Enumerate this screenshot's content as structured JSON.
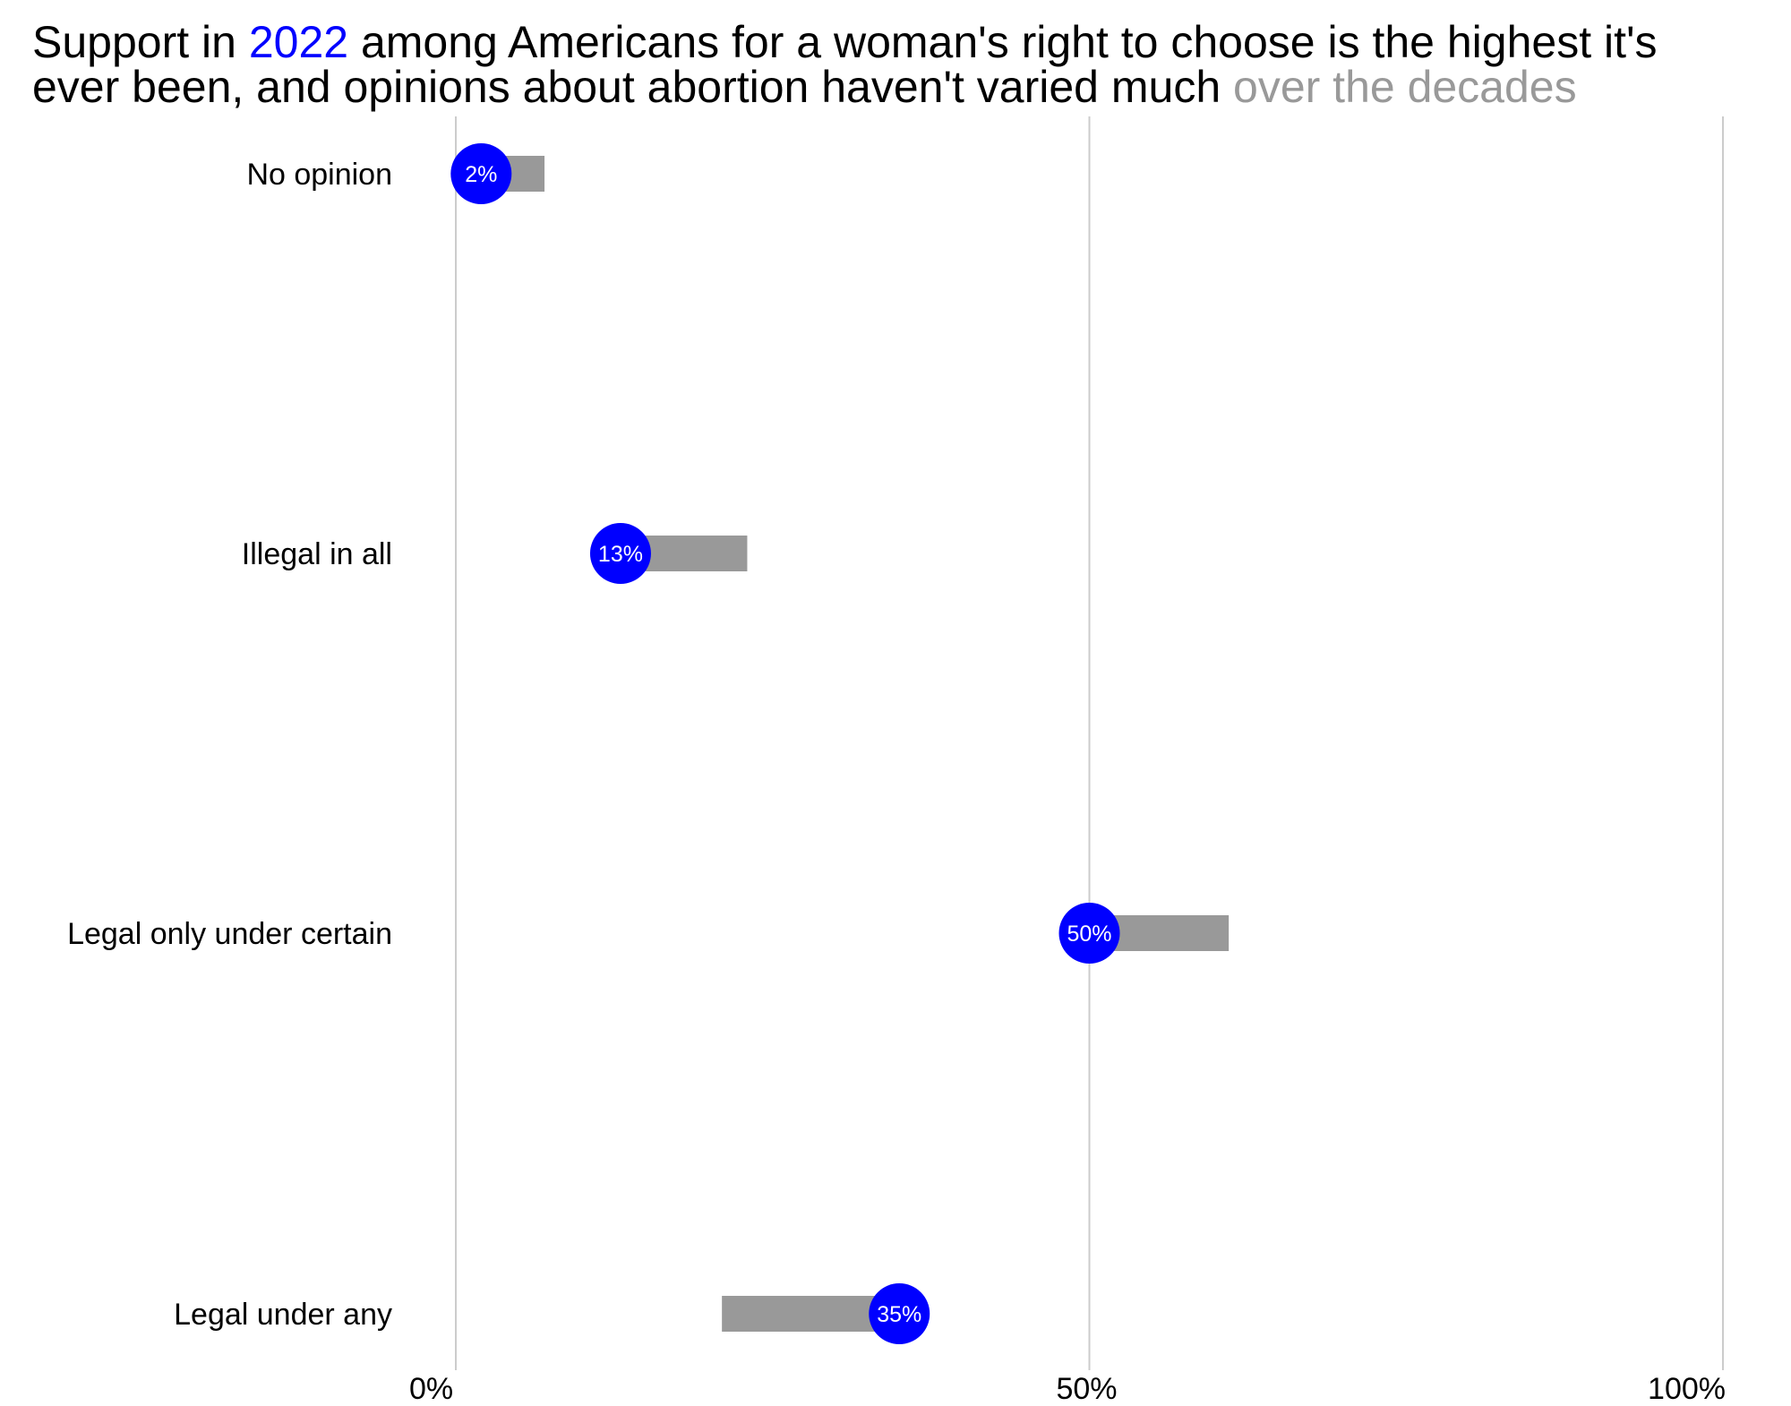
{
  "title": {
    "line1_pre": "Support in ",
    "line1_year": "2022",
    "line1_post": " among Americans for a woman's right to choose is the highest it's",
    "line2_pre": "ever been, and opinions about abortion haven't varied much ",
    "line2_highlight": "over the decades"
  },
  "colors": {
    "highlight": "#0000ff",
    "range": "#999999",
    "grid": "#cccccc",
    "dot_text": "#ffffff"
  },
  "chart_data": {
    "type": "dot-range",
    "x_ticks": [
      {
        "value": 0,
        "label": "0%"
      },
      {
        "value": 50,
        "label": "50%"
      },
      {
        "value": 100,
        "label": "100%"
      }
    ],
    "xlim": [
      0,
      100
    ],
    "categories": [
      "No opinion",
      "Illegal in all",
      "Legal only under certain",
      "Legal under any"
    ],
    "series": [
      {
        "name": "2022",
        "values": [
          2,
          13,
          50,
          35
        ],
        "labels": [
          "2%",
          "13%",
          "50%",
          "35%"
        ]
      }
    ],
    "range_min": [
      2,
      13,
      50,
      21
    ],
    "range_max": [
      7,
      23,
      61,
      35
    ],
    "grid": true,
    "legend": "none"
  }
}
